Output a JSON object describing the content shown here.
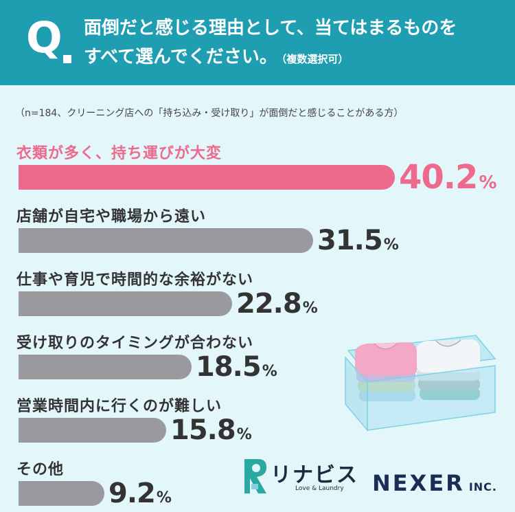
{
  "question": {
    "mark": "Q",
    "line1": "面倒だと感じる理由として、当てはまるものを",
    "line2": "すべて選んでください。",
    "note": "（複数選択可）"
  },
  "sample_note": "（n=184、クリーニング店への「持ち込み・受け取り」が面倒だと感じることがある方）",
  "chart_data": {
    "type": "bar",
    "orientation": "horizontal",
    "unit": "%",
    "categories": [
      "衣類が多く、持ち運びが大変",
      "店舗が自宅や職場から遠い",
      "仕事や育児で時間的な余裕がない",
      "受け取りのタイミングが合わない",
      "営業時間内に行くのが難しい",
      "その他"
    ],
    "values": [
      40.2,
      31.5,
      22.8,
      18.5,
      15.8,
      9.2
    ],
    "value_labels": [
      "40.2",
      "31.5",
      "22.8",
      "18.5",
      "15.8",
      "9.2"
    ],
    "highlight_index": 0,
    "colors": {
      "highlight": "#ee6a8c",
      "default": "#9a9a9e"
    },
    "xlim": [
      0,
      40.2
    ]
  },
  "logos": {
    "rinavis_name": "リナビス",
    "rinavis_tagline": "Love & Laundry",
    "nexer_name": "NEXER",
    "nexer_suffix": "INC."
  },
  "colors": {
    "header_bg": "#1f9eb1",
    "page_bg": "#e3f6fa",
    "highlight": "#ee6a8c",
    "bar": "#9a9a9e"
  }
}
